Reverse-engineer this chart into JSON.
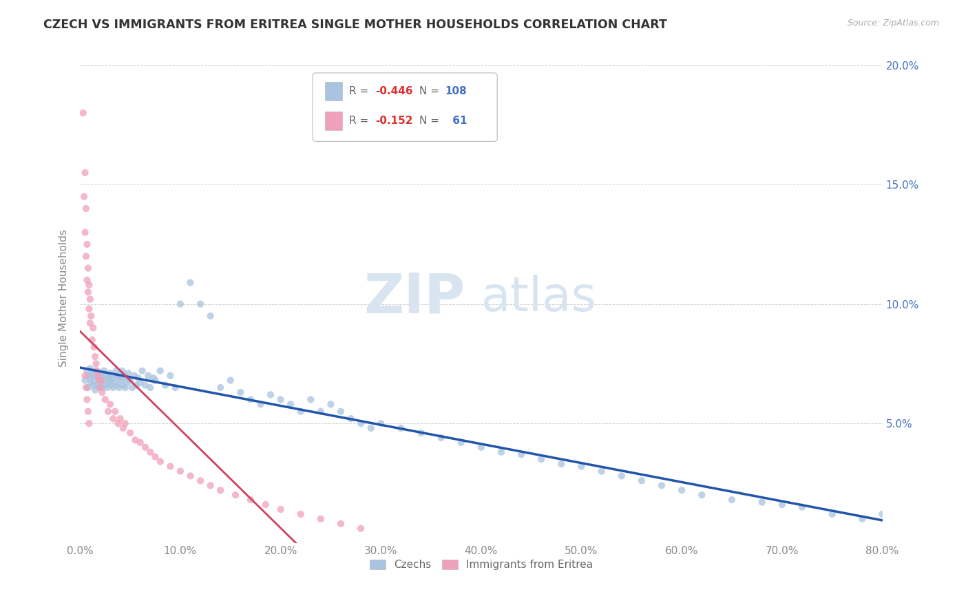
{
  "title": "CZECH VS IMMIGRANTS FROM ERITREA SINGLE MOTHER HOUSEHOLDS CORRELATION CHART",
  "source": "Source: ZipAtlas.com",
  "ylabel": "Single Mother Households",
  "czechs_color": "#a8c4e0",
  "eritrea_color": "#f0a0b8",
  "czechs_line_color": "#2255aa",
  "eritrea_line_color": "#d04060",
  "dashed_line_color": "#cccccc",
  "background_color": "#ffffff",
  "grid_color": "#cccccc",
  "xlim": [
    0.0,
    0.8
  ],
  "ylim": [
    0.0,
    0.205
  ],
  "xticks": [
    0.0,
    0.1,
    0.2,
    0.3,
    0.4,
    0.5,
    0.6,
    0.7,
    0.8
  ],
  "yticks": [
    0.0,
    0.05,
    0.1,
    0.15,
    0.2
  ],
  "xticklabels": [
    "0.0%",
    "10.0%",
    "20.0%",
    "30.0%",
    "40.0%",
    "50.0%",
    "60.0%",
    "70.0%",
    "80.0%"
  ],
  "left_yticklabels": [
    "",
    "",
    "",
    "",
    ""
  ],
  "right_yticklabels": [
    "",
    "5.0%",
    "10.0%",
    "15.0%",
    "20.0%"
  ],
  "watermark_zip": "ZIP",
  "watermark_atlas": "atlas",
  "czechs_x": [
    0.005,
    0.007,
    0.008,
    0.009,
    0.01,
    0.01,
    0.011,
    0.012,
    0.013,
    0.014,
    0.015,
    0.015,
    0.016,
    0.017,
    0.018,
    0.019,
    0.02,
    0.02,
    0.021,
    0.022,
    0.022,
    0.023,
    0.024,
    0.025,
    0.026,
    0.027,
    0.028,
    0.029,
    0.03,
    0.03,
    0.031,
    0.032,
    0.033,
    0.034,
    0.035,
    0.036,
    0.037,
    0.038,
    0.039,
    0.04,
    0.041,
    0.042,
    0.043,
    0.044,
    0.045,
    0.046,
    0.047,
    0.048,
    0.05,
    0.052,
    0.054,
    0.056,
    0.058,
    0.06,
    0.062,
    0.065,
    0.068,
    0.07,
    0.073,
    0.075,
    0.08,
    0.085,
    0.09,
    0.095,
    0.1,
    0.11,
    0.12,
    0.13,
    0.14,
    0.15,
    0.16,
    0.17,
    0.18,
    0.19,
    0.2,
    0.21,
    0.22,
    0.23,
    0.24,
    0.25,
    0.26,
    0.27,
    0.28,
    0.29,
    0.3,
    0.32,
    0.34,
    0.36,
    0.38,
    0.4,
    0.42,
    0.44,
    0.46,
    0.48,
    0.5,
    0.52,
    0.54,
    0.56,
    0.58,
    0.6,
    0.62,
    0.65,
    0.68,
    0.7,
    0.72,
    0.75,
    0.78,
    0.8
  ],
  "czechs_y": [
    0.068,
    0.072,
    0.065,
    0.07,
    0.069,
    0.073,
    0.067,
    0.071,
    0.066,
    0.068,
    0.072,
    0.064,
    0.07,
    0.066,
    0.069,
    0.065,
    0.071,
    0.068,
    0.067,
    0.07,
    0.065,
    0.068,
    0.072,
    0.066,
    0.07,
    0.065,
    0.069,
    0.067,
    0.071,
    0.068,
    0.066,
    0.07,
    0.065,
    0.069,
    0.067,
    0.072,
    0.066,
    0.07,
    0.065,
    0.069,
    0.068,
    0.072,
    0.066,
    0.07,
    0.065,
    0.069,
    0.067,
    0.071,
    0.068,
    0.065,
    0.07,
    0.066,
    0.069,
    0.067,
    0.072,
    0.066,
    0.07,
    0.065,
    0.069,
    0.068,
    0.072,
    0.066,
    0.07,
    0.065,
    0.1,
    0.109,
    0.1,
    0.095,
    0.065,
    0.068,
    0.063,
    0.06,
    0.058,
    0.062,
    0.06,
    0.058,
    0.055,
    0.06,
    0.055,
    0.058,
    0.055,
    0.052,
    0.05,
    0.048,
    0.05,
    0.048,
    0.046,
    0.044,
    0.042,
    0.04,
    0.038,
    0.037,
    0.035,
    0.033,
    0.032,
    0.03,
    0.028,
    0.026,
    0.024,
    0.022,
    0.02,
    0.018,
    0.017,
    0.016,
    0.015,
    0.012,
    0.01,
    0.012
  ],
  "eritrea_x": [
    0.003,
    0.004,
    0.005,
    0.005,
    0.006,
    0.006,
    0.007,
    0.007,
    0.008,
    0.008,
    0.009,
    0.009,
    0.01,
    0.01,
    0.011,
    0.012,
    0.013,
    0.014,
    0.015,
    0.016,
    0.017,
    0.018,
    0.019,
    0.02,
    0.021,
    0.022,
    0.025,
    0.028,
    0.03,
    0.033,
    0.035,
    0.038,
    0.04,
    0.043,
    0.045,
    0.05,
    0.055,
    0.06,
    0.065,
    0.07,
    0.075,
    0.08,
    0.09,
    0.1,
    0.11,
    0.12,
    0.13,
    0.14,
    0.155,
    0.17,
    0.185,
    0.2,
    0.22,
    0.24,
    0.26,
    0.28,
    0.005,
    0.006,
    0.007,
    0.008,
    0.009
  ],
  "eritrea_y": [
    0.18,
    0.145,
    0.13,
    0.155,
    0.12,
    0.14,
    0.11,
    0.125,
    0.105,
    0.115,
    0.098,
    0.108,
    0.092,
    0.102,
    0.095,
    0.085,
    0.09,
    0.082,
    0.078,
    0.075,
    0.072,
    0.07,
    0.068,
    0.065,
    0.068,
    0.063,
    0.06,
    0.055,
    0.058,
    0.052,
    0.055,
    0.05,
    0.052,
    0.048,
    0.05,
    0.046,
    0.043,
    0.042,
    0.04,
    0.038,
    0.036,
    0.034,
    0.032,
    0.03,
    0.028,
    0.026,
    0.024,
    0.022,
    0.02,
    0.018,
    0.016,
    0.014,
    0.012,
    0.01,
    0.008,
    0.006,
    0.07,
    0.065,
    0.06,
    0.055,
    0.05
  ]
}
